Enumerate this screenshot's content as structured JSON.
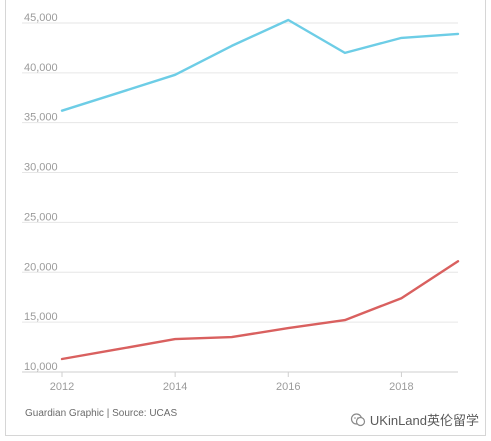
{
  "source": "Guardian Graphic | Source: UCAS",
  "watermark": "UKinLand英伦留学",
  "watermark_icon": "wechat-icon",
  "colors": {
    "series_1": "#6dcde6",
    "series_2": "#d9605f",
    "grid": "#e6e6e6",
    "tick_text": "#9b9b9b"
  },
  "chart_data": {
    "type": "line",
    "title": "",
    "xlabel": "",
    "ylabel": "",
    "x": [
      2012,
      2013,
      2014,
      2015,
      2016,
      2017,
      2018,
      2019
    ],
    "x_ticks": [
      "2012",
      "2014",
      "2016",
      "2018"
    ],
    "y_ticks": [
      "10,000",
      "15,000",
      "20,000",
      "25,000",
      "30,000",
      "35,000",
      "40,000",
      "45,000"
    ],
    "xlim": [
      2012,
      2019
    ],
    "ylim": [
      10000,
      46500
    ],
    "grid": true,
    "series": [
      {
        "values": [
          36200,
          38000,
          39800,
          42700,
          45300,
          42000,
          43500,
          43900
        ]
      },
      {
        "values": [
          11300,
          12300,
          13300,
          13500,
          14400,
          15200,
          17400,
          21100
        ]
      }
    ]
  }
}
